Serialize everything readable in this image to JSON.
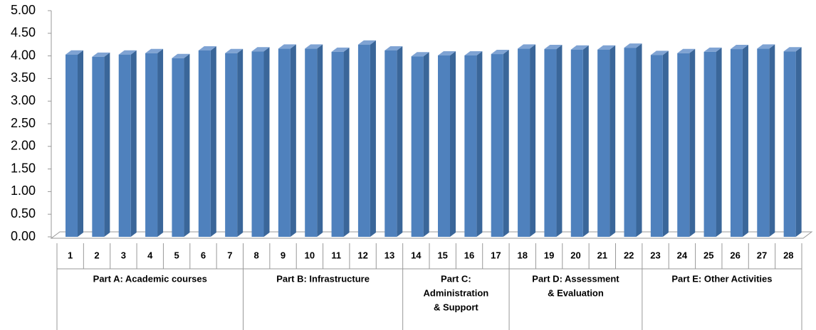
{
  "chart_data": {
    "type": "bar",
    "color": "#4f81bd",
    "ylim": [
      0,
      5
    ],
    "yticks": [
      {
        "value": 0,
        "label": "0.00"
      },
      {
        "value": 0.5,
        "label": "0.50"
      },
      {
        "value": 1,
        "label": "1.00"
      },
      {
        "value": 1.5,
        "label": "1.50"
      },
      {
        "value": 2,
        "label": "2.00"
      },
      {
        "value": 2.5,
        "label": "2.50"
      },
      {
        "value": 3,
        "label": "3.00"
      },
      {
        "value": 3.5,
        "label": "3.50"
      },
      {
        "value": 4,
        "label": "4.00"
      },
      {
        "value": 4.5,
        "label": "4.50"
      },
      {
        "value": 5,
        "label": "5.00"
      }
    ],
    "groups": [
      {
        "label": [
          "Part A: Academic courses"
        ],
        "categories": [
          "1",
          "2",
          "3",
          "4",
          "5",
          "6",
          "7"
        ],
        "values": [
          4.03,
          3.98,
          4.03,
          4.06,
          3.95,
          4.12,
          4.06
        ]
      },
      {
        "label": [
          "Part B: Infrastructure"
        ],
        "categories": [
          "8",
          "9",
          "10",
          "11",
          "12",
          "13"
        ],
        "values": [
          4.1,
          4.16,
          4.16,
          4.09,
          4.25,
          4.12
        ]
      },
      {
        "label": [
          "Part C:",
          "Administration",
          "& Support"
        ],
        "categories": [
          "14",
          "15",
          "16",
          "17"
        ],
        "values": [
          3.99,
          4.01,
          4.01,
          4.04
        ]
      },
      {
        "label": [
          "Part D: Assessment",
          "& Evaluation"
        ],
        "categories": [
          "18",
          "19",
          "20",
          "21",
          "22"
        ],
        "values": [
          4.16,
          4.15,
          4.14,
          4.14,
          4.18
        ]
      },
      {
        "label": [
          "Part E: Other Activities"
        ],
        "categories": [
          "23",
          "24",
          "25",
          "26",
          "27",
          "28"
        ],
        "values": [
          4.02,
          4.06,
          4.09,
          4.15,
          4.16,
          4.1
        ]
      }
    ]
  }
}
